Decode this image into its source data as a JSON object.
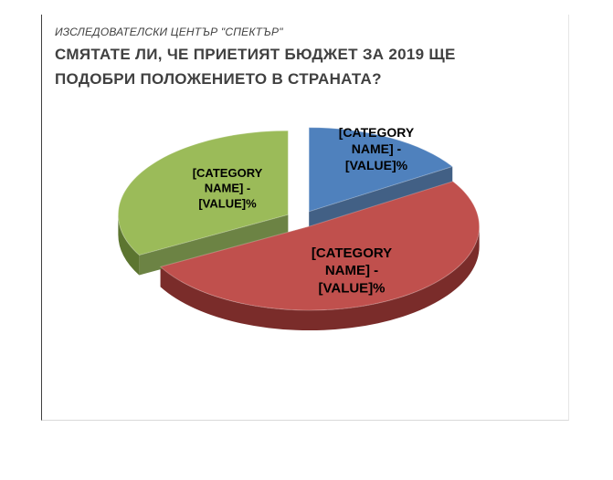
{
  "header": {
    "subtitle": "ИЗСЛЕДОВАТЕЛСКИ ЦЕНТЪР \"СПЕКТЪР\"",
    "title": "СМЯТАТЕ ЛИ, ЧЕ ПРИЕТИЯТ БЮДЖЕТ ЗА 2019 ЩЕ ПОДОБРИ ПОЛОЖЕНИЕТО В СТРАНАТА?"
  },
  "chart_data": {
    "type": "pie",
    "title": "СМЯТАТЕ ЛИ, ЧЕ ПРИЕТИЯТ БЮДЖЕТ ЗА 2019 ЩЕ ПОДОБРИ ПОЛОЖЕНИЕТО В СТРАНАТА?",
    "subtitle": "ИЗСЛЕДОВАТЕЛСКИ ЦЕНТЪР \"СПЕКТЪР\"",
    "three_d": true,
    "legend": "none",
    "slices": [
      {
        "label_lines": [
          "[CATEGORY",
          "NAME] -",
          "[VALUE]%"
        ],
        "value": 16,
        "color": "#4f81bd",
        "side_color": "#2d4f78",
        "font_size": 14
      },
      {
        "label_lines": [
          "[CATEGORY",
          "NAME] -",
          "[VALUE]%"
        ],
        "value": 51,
        "color": "#c0504d",
        "side_color": "#7a2c2a",
        "font_size": 15
      },
      {
        "label_lines": [
          "[CATEGORY",
          "NAME] -",
          "[VALUE]%"
        ],
        "value": 33,
        "color": "#9bbb59",
        "side_color": "#5c7530",
        "font_size": 13
      }
    ]
  }
}
